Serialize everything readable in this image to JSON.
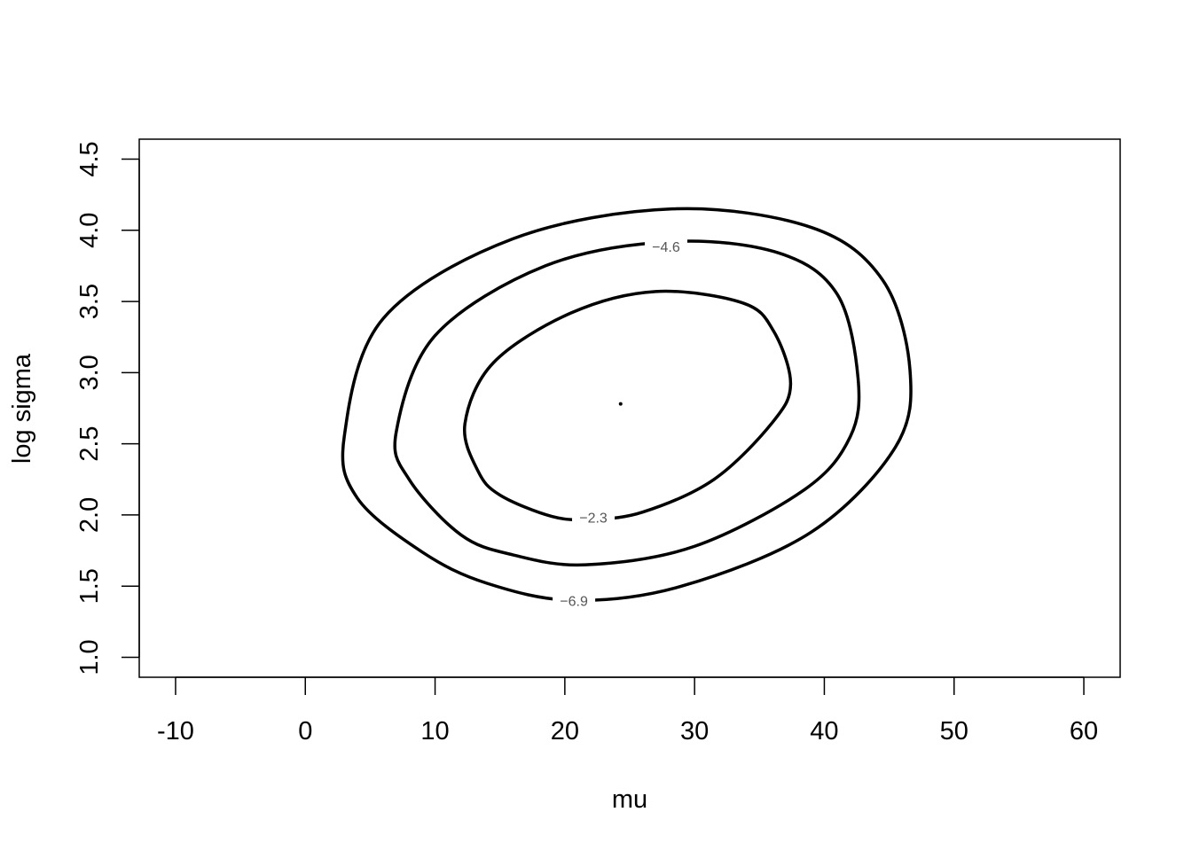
{
  "chart_data": {
    "type": "contour",
    "title": "",
    "xlabel": "mu",
    "ylabel": "log sigma",
    "xlim": [
      -12.8,
      62.8
    ],
    "ylim": [
      0.86,
      4.64
    ],
    "x_ticks": [
      -10,
      0,
      10,
      20,
      30,
      40,
      50,
      60
    ],
    "x_tick_labels": [
      "-10",
      "0",
      "10",
      "20",
      "30",
      "40",
      "50",
      "60"
    ],
    "y_ticks": [
      1.0,
      1.5,
      2.0,
      2.5,
      3.0,
      3.5,
      4.0,
      4.5
    ],
    "y_tick_labels": [
      "1.0",
      "1.5",
      "2.0",
      "2.5",
      "3.0",
      "3.5",
      "4.0",
      "4.5"
    ],
    "grid": false,
    "legend": "none",
    "center_point": {
      "x": 24.3,
      "y": 2.78
    },
    "contours": [
      {
        "level": -2.3,
        "label": "−2.3",
        "points": [
          [
            24.3,
            2.78
          ],
          [
            37.4,
            2.92
          ],
          [
            36.1,
            3.29
          ],
          [
            33.7,
            3.49
          ],
          [
            27.0,
            3.57
          ],
          [
            20.5,
            3.42
          ],
          [
            14.5,
            3.07
          ],
          [
            12.3,
            2.64
          ],
          [
            13.3,
            2.31
          ],
          [
            15.0,
            2.14
          ],
          [
            19.0,
            1.99
          ],
          [
            22.0,
            1.97
          ],
          [
            26.0,
            2.02
          ],
          [
            31.5,
            2.25
          ],
          [
            36.0,
            2.65
          ]
        ],
        "label_at": [
          22.2,
          1.985
        ]
      },
      {
        "level": -4.6,
        "label": "−4.6",
        "points": [
          [
            24.3,
            2.78
          ],
          [
            42.6,
            2.96
          ],
          [
            41.0,
            3.55
          ],
          [
            36.5,
            3.84
          ],
          [
            28.2,
            3.92
          ],
          [
            18.5,
            3.75
          ],
          [
            10.0,
            3.26
          ],
          [
            7.0,
            2.58
          ],
          [
            8.0,
            2.25
          ],
          [
            12.0,
            1.86
          ],
          [
            16.0,
            1.72
          ],
          [
            21.6,
            1.65
          ],
          [
            30.0,
            1.78
          ],
          [
            38.5,
            2.18
          ],
          [
            42.0,
            2.55
          ]
        ],
        "label_at": [
          27.8,
          3.885
        ]
      },
      {
        "level": -6.9,
        "label": "−6.9",
        "points": [
          [
            24.3,
            2.78
          ],
          [
            46.6,
            3.02
          ],
          [
            44.5,
            3.65
          ],
          [
            39.0,
            4.02
          ],
          [
            28.3,
            4.15
          ],
          [
            16.0,
            3.94
          ],
          [
            6.0,
            3.38
          ],
          [
            3.0,
            2.55
          ],
          [
            4.0,
            2.12
          ],
          [
            9.0,
            1.74
          ],
          [
            14.0,
            1.52
          ],
          [
            20.7,
            1.4
          ],
          [
            29.0,
            1.5
          ],
          [
            39.0,
            1.88
          ],
          [
            45.5,
            2.48
          ]
        ],
        "label_at": [
          20.7,
          1.4
        ]
      }
    ]
  }
}
